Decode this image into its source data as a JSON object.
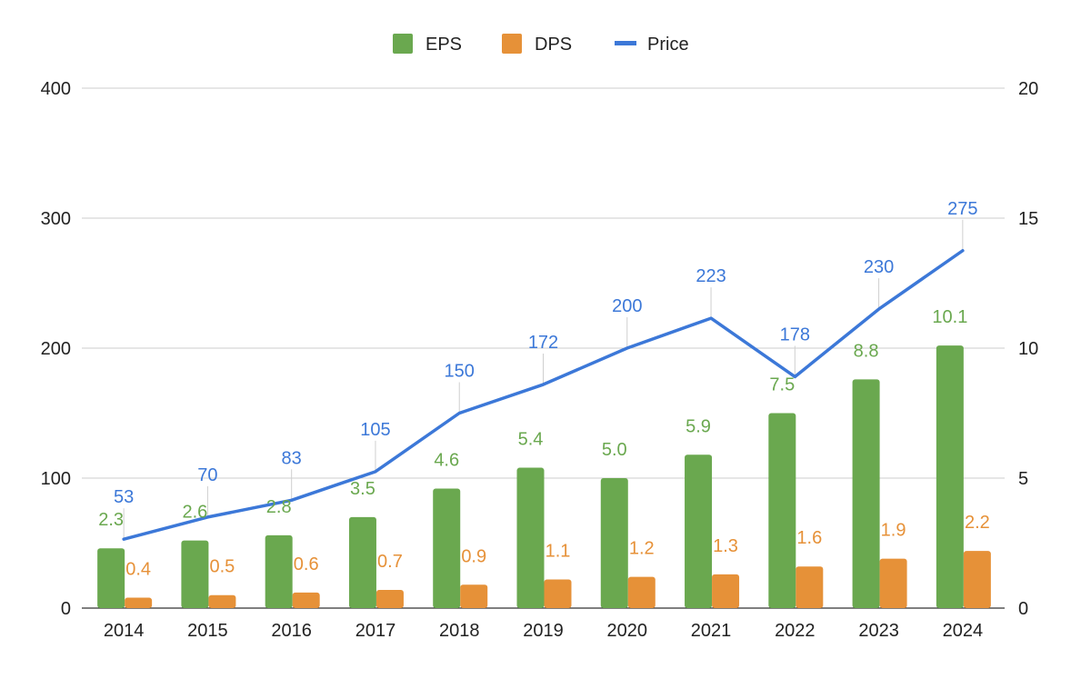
{
  "chart_data": {
    "type": "bar",
    "categories": [
      "2014",
      "2015",
      "2016",
      "2017",
      "2018",
      "2019",
      "2020",
      "2021",
      "2022",
      "2023",
      "2024"
    ],
    "series": [
      {
        "name": "EPS",
        "type": "bar",
        "axis": "right",
        "color": "#6aa84f",
        "values": [
          2.3,
          2.6,
          2.8,
          3.5,
          4.6,
          5.4,
          5.0,
          5.9,
          7.5,
          8.8,
          10.1
        ],
        "labels": [
          "2.3",
          "2.6",
          "2.8",
          "3.5",
          "4.6",
          "5.4",
          "5.0",
          "5.9",
          "7.5",
          "8.8",
          "10.1"
        ]
      },
      {
        "name": "DPS",
        "type": "bar",
        "axis": "right",
        "color": "#e69138",
        "values": [
          0.4,
          0.5,
          0.6,
          0.7,
          0.9,
          1.1,
          1.2,
          1.3,
          1.6,
          1.9,
          2.2
        ],
        "labels": [
          "0.4",
          "0.5",
          "0.6",
          "0.7",
          "0.9",
          "1.1",
          "1.2",
          "1.3",
          "1.6",
          "1.9",
          "2.2"
        ]
      },
      {
        "name": "Price",
        "type": "line",
        "axis": "left",
        "color": "#3c78d8",
        "values": [
          53,
          70,
          83,
          105,
          150,
          172,
          200,
          223,
          178,
          230,
          275
        ],
        "labels": [
          "53",
          "70",
          "83",
          "105",
          "150",
          "172",
          "200",
          "223",
          "178",
          "230",
          "275"
        ]
      }
    ],
    "y_left": {
      "ticks": [
        "0",
        "100",
        "200",
        "300",
        "400"
      ],
      "range": [
        0,
        400
      ]
    },
    "y_right": {
      "ticks": [
        "0",
        "5",
        "10",
        "15",
        "20"
      ],
      "range": [
        0,
        20
      ]
    },
    "legend_position": "top-center",
    "grid": true,
    "title": "",
    "xlabel": "",
    "ylabel": ""
  }
}
